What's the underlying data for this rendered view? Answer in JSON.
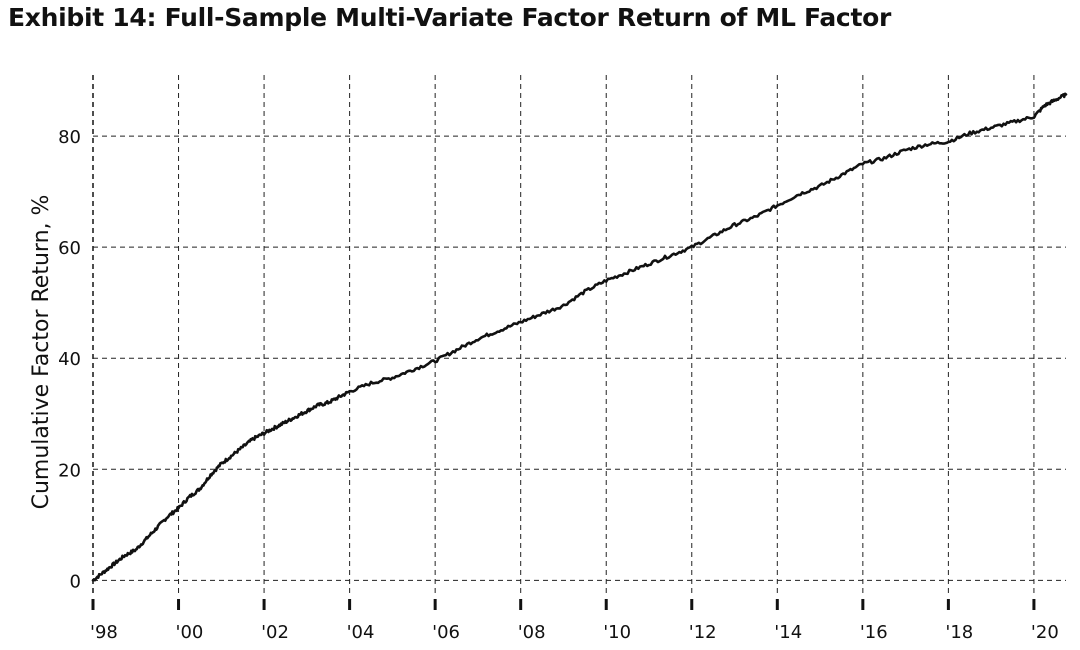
{
  "chart_data": {
    "type": "line",
    "title": "Exhibit 14: Full-Sample Multi-Variate Factor Return of ML Factor",
    "xlabel": "",
    "ylabel": "Cumulative Factor Return, %",
    "xlim": [
      1998.0,
      2020.75
    ],
    "ylim": [
      -3,
      91
    ],
    "grid": true,
    "x_ticks": [
      1998,
      2000,
      2002,
      2004,
      2006,
      2008,
      2010,
      2012,
      2014,
      2016,
      2018,
      2020
    ],
    "x_tick_labels": [
      "'98",
      "'00",
      "'02",
      "'04",
      "'06",
      "'08",
      "'10",
      "'12",
      "'14",
      "'16",
      "'18",
      "'20"
    ],
    "y_ticks": [
      0,
      20,
      40,
      60,
      80
    ],
    "y_tick_labels": [
      "0",
      "20",
      "40",
      "60",
      "80"
    ],
    "series": [
      {
        "color": "#111111",
        "x": [
          1998.0,
          1998.25,
          1998.5,
          1998.75,
          1999.0,
          1999.25,
          1999.5,
          1999.75,
          2000.0,
          2000.25,
          2000.5,
          2000.75,
          2001.0,
          2001.25,
          2001.5,
          2001.75,
          2002.0,
          2002.25,
          2002.5,
          2002.75,
          2003.0,
          2003.25,
          2003.5,
          2003.75,
          2004.0,
          2004.5,
          2005.0,
          2005.5,
          2006.0,
          2006.5,
          2007.0,
          2007.5,
          2008.0,
          2008.5,
          2009.0,
          2009.5,
          2010.0,
          2010.5,
          2011.0,
          2011.5,
          2012.0,
          2012.5,
          2013.0,
          2013.5,
          2014.0,
          2014.5,
          2015.0,
          2015.5,
          2016.0,
          2016.5,
          2017.0,
          2017.5,
          2018.0,
          2018.5,
          2019.0,
          2019.5,
          2020.0,
          2020.25,
          2020.5,
          2020.75
        ],
        "y": [
          0.0,
          1.5,
          3.0,
          4.5,
          5.5,
          7.5,
          9.5,
          11.5,
          13.0,
          15.0,
          16.5,
          19.0,
          21.0,
          22.5,
          24.0,
          25.5,
          26.5,
          27.5,
          28.5,
          29.5,
          30.5,
          31.5,
          32.0,
          33.0,
          34.0,
          35.5,
          36.5,
          38.0,
          39.5,
          41.5,
          43.5,
          45.0,
          46.5,
          48.0,
          49.5,
          52.0,
          54.0,
          55.5,
          57.0,
          58.5,
          60.0,
          62.0,
          64.0,
          65.5,
          67.5,
          69.5,
          71.0,
          73.0,
          75.0,
          76.0,
          77.5,
          78.5,
          79.0,
          80.5,
          81.5,
          82.5,
          83.5,
          85.5,
          86.5,
          87.5
        ]
      }
    ]
  }
}
